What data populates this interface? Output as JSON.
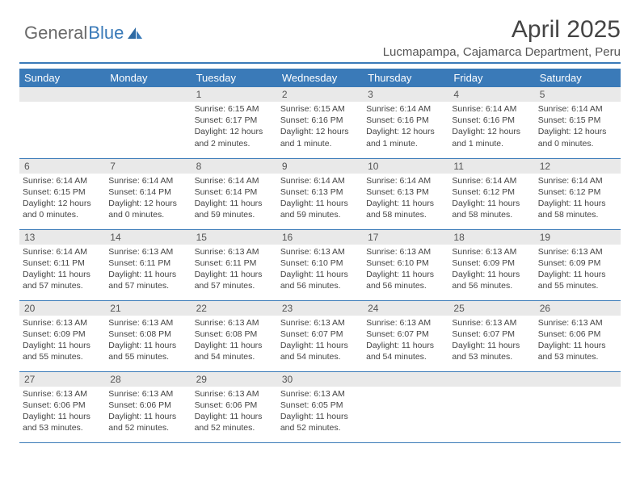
{
  "brand": {
    "part1": "General",
    "part2": "Blue"
  },
  "header": {
    "title": "April 2025",
    "location": "Lucmapampa, Cajamarca Department, Peru"
  },
  "colors": {
    "accent": "#3a7ab8",
    "header_bg": "#3a7ab8",
    "daynum_bg": "#e9e9e9",
    "text": "#444444"
  },
  "weekdays": [
    "Sunday",
    "Monday",
    "Tuesday",
    "Wednesday",
    "Thursday",
    "Friday",
    "Saturday"
  ],
  "weeks": [
    [
      {
        "day": "",
        "sunrise": "",
        "sunset": "",
        "daylight": ""
      },
      {
        "day": "",
        "sunrise": "",
        "sunset": "",
        "daylight": ""
      },
      {
        "day": "1",
        "sunrise": "Sunrise: 6:15 AM",
        "sunset": "Sunset: 6:17 PM",
        "daylight": "Daylight: 12 hours and 2 minutes."
      },
      {
        "day": "2",
        "sunrise": "Sunrise: 6:15 AM",
        "sunset": "Sunset: 6:16 PM",
        "daylight": "Daylight: 12 hours and 1 minute."
      },
      {
        "day": "3",
        "sunrise": "Sunrise: 6:14 AM",
        "sunset": "Sunset: 6:16 PM",
        "daylight": "Daylight: 12 hours and 1 minute."
      },
      {
        "day": "4",
        "sunrise": "Sunrise: 6:14 AM",
        "sunset": "Sunset: 6:16 PM",
        "daylight": "Daylight: 12 hours and 1 minute."
      },
      {
        "day": "5",
        "sunrise": "Sunrise: 6:14 AM",
        "sunset": "Sunset: 6:15 PM",
        "daylight": "Daylight: 12 hours and 0 minutes."
      }
    ],
    [
      {
        "day": "6",
        "sunrise": "Sunrise: 6:14 AM",
        "sunset": "Sunset: 6:15 PM",
        "daylight": "Daylight: 12 hours and 0 minutes."
      },
      {
        "day": "7",
        "sunrise": "Sunrise: 6:14 AM",
        "sunset": "Sunset: 6:14 PM",
        "daylight": "Daylight: 12 hours and 0 minutes."
      },
      {
        "day": "8",
        "sunrise": "Sunrise: 6:14 AM",
        "sunset": "Sunset: 6:14 PM",
        "daylight": "Daylight: 11 hours and 59 minutes."
      },
      {
        "day": "9",
        "sunrise": "Sunrise: 6:14 AM",
        "sunset": "Sunset: 6:13 PM",
        "daylight": "Daylight: 11 hours and 59 minutes."
      },
      {
        "day": "10",
        "sunrise": "Sunrise: 6:14 AM",
        "sunset": "Sunset: 6:13 PM",
        "daylight": "Daylight: 11 hours and 58 minutes."
      },
      {
        "day": "11",
        "sunrise": "Sunrise: 6:14 AM",
        "sunset": "Sunset: 6:12 PM",
        "daylight": "Daylight: 11 hours and 58 minutes."
      },
      {
        "day": "12",
        "sunrise": "Sunrise: 6:14 AM",
        "sunset": "Sunset: 6:12 PM",
        "daylight": "Daylight: 11 hours and 58 minutes."
      }
    ],
    [
      {
        "day": "13",
        "sunrise": "Sunrise: 6:14 AM",
        "sunset": "Sunset: 6:11 PM",
        "daylight": "Daylight: 11 hours and 57 minutes."
      },
      {
        "day": "14",
        "sunrise": "Sunrise: 6:13 AM",
        "sunset": "Sunset: 6:11 PM",
        "daylight": "Daylight: 11 hours and 57 minutes."
      },
      {
        "day": "15",
        "sunrise": "Sunrise: 6:13 AM",
        "sunset": "Sunset: 6:11 PM",
        "daylight": "Daylight: 11 hours and 57 minutes."
      },
      {
        "day": "16",
        "sunrise": "Sunrise: 6:13 AM",
        "sunset": "Sunset: 6:10 PM",
        "daylight": "Daylight: 11 hours and 56 minutes."
      },
      {
        "day": "17",
        "sunrise": "Sunrise: 6:13 AM",
        "sunset": "Sunset: 6:10 PM",
        "daylight": "Daylight: 11 hours and 56 minutes."
      },
      {
        "day": "18",
        "sunrise": "Sunrise: 6:13 AM",
        "sunset": "Sunset: 6:09 PM",
        "daylight": "Daylight: 11 hours and 56 minutes."
      },
      {
        "day": "19",
        "sunrise": "Sunrise: 6:13 AM",
        "sunset": "Sunset: 6:09 PM",
        "daylight": "Daylight: 11 hours and 55 minutes."
      }
    ],
    [
      {
        "day": "20",
        "sunrise": "Sunrise: 6:13 AM",
        "sunset": "Sunset: 6:09 PM",
        "daylight": "Daylight: 11 hours and 55 minutes."
      },
      {
        "day": "21",
        "sunrise": "Sunrise: 6:13 AM",
        "sunset": "Sunset: 6:08 PM",
        "daylight": "Daylight: 11 hours and 55 minutes."
      },
      {
        "day": "22",
        "sunrise": "Sunrise: 6:13 AM",
        "sunset": "Sunset: 6:08 PM",
        "daylight": "Daylight: 11 hours and 54 minutes."
      },
      {
        "day": "23",
        "sunrise": "Sunrise: 6:13 AM",
        "sunset": "Sunset: 6:07 PM",
        "daylight": "Daylight: 11 hours and 54 minutes."
      },
      {
        "day": "24",
        "sunrise": "Sunrise: 6:13 AM",
        "sunset": "Sunset: 6:07 PM",
        "daylight": "Daylight: 11 hours and 54 minutes."
      },
      {
        "day": "25",
        "sunrise": "Sunrise: 6:13 AM",
        "sunset": "Sunset: 6:07 PM",
        "daylight": "Daylight: 11 hours and 53 minutes."
      },
      {
        "day": "26",
        "sunrise": "Sunrise: 6:13 AM",
        "sunset": "Sunset: 6:06 PM",
        "daylight": "Daylight: 11 hours and 53 minutes."
      }
    ],
    [
      {
        "day": "27",
        "sunrise": "Sunrise: 6:13 AM",
        "sunset": "Sunset: 6:06 PM",
        "daylight": "Daylight: 11 hours and 53 minutes."
      },
      {
        "day": "28",
        "sunrise": "Sunrise: 6:13 AM",
        "sunset": "Sunset: 6:06 PM",
        "daylight": "Daylight: 11 hours and 52 minutes."
      },
      {
        "day": "29",
        "sunrise": "Sunrise: 6:13 AM",
        "sunset": "Sunset: 6:06 PM",
        "daylight": "Daylight: 11 hours and 52 minutes."
      },
      {
        "day": "30",
        "sunrise": "Sunrise: 6:13 AM",
        "sunset": "Sunset: 6:05 PM",
        "daylight": "Daylight: 11 hours and 52 minutes."
      },
      {
        "day": "",
        "sunrise": "",
        "sunset": "",
        "daylight": ""
      },
      {
        "day": "",
        "sunrise": "",
        "sunset": "",
        "daylight": ""
      },
      {
        "day": "",
        "sunrise": "",
        "sunset": "",
        "daylight": ""
      }
    ]
  ]
}
